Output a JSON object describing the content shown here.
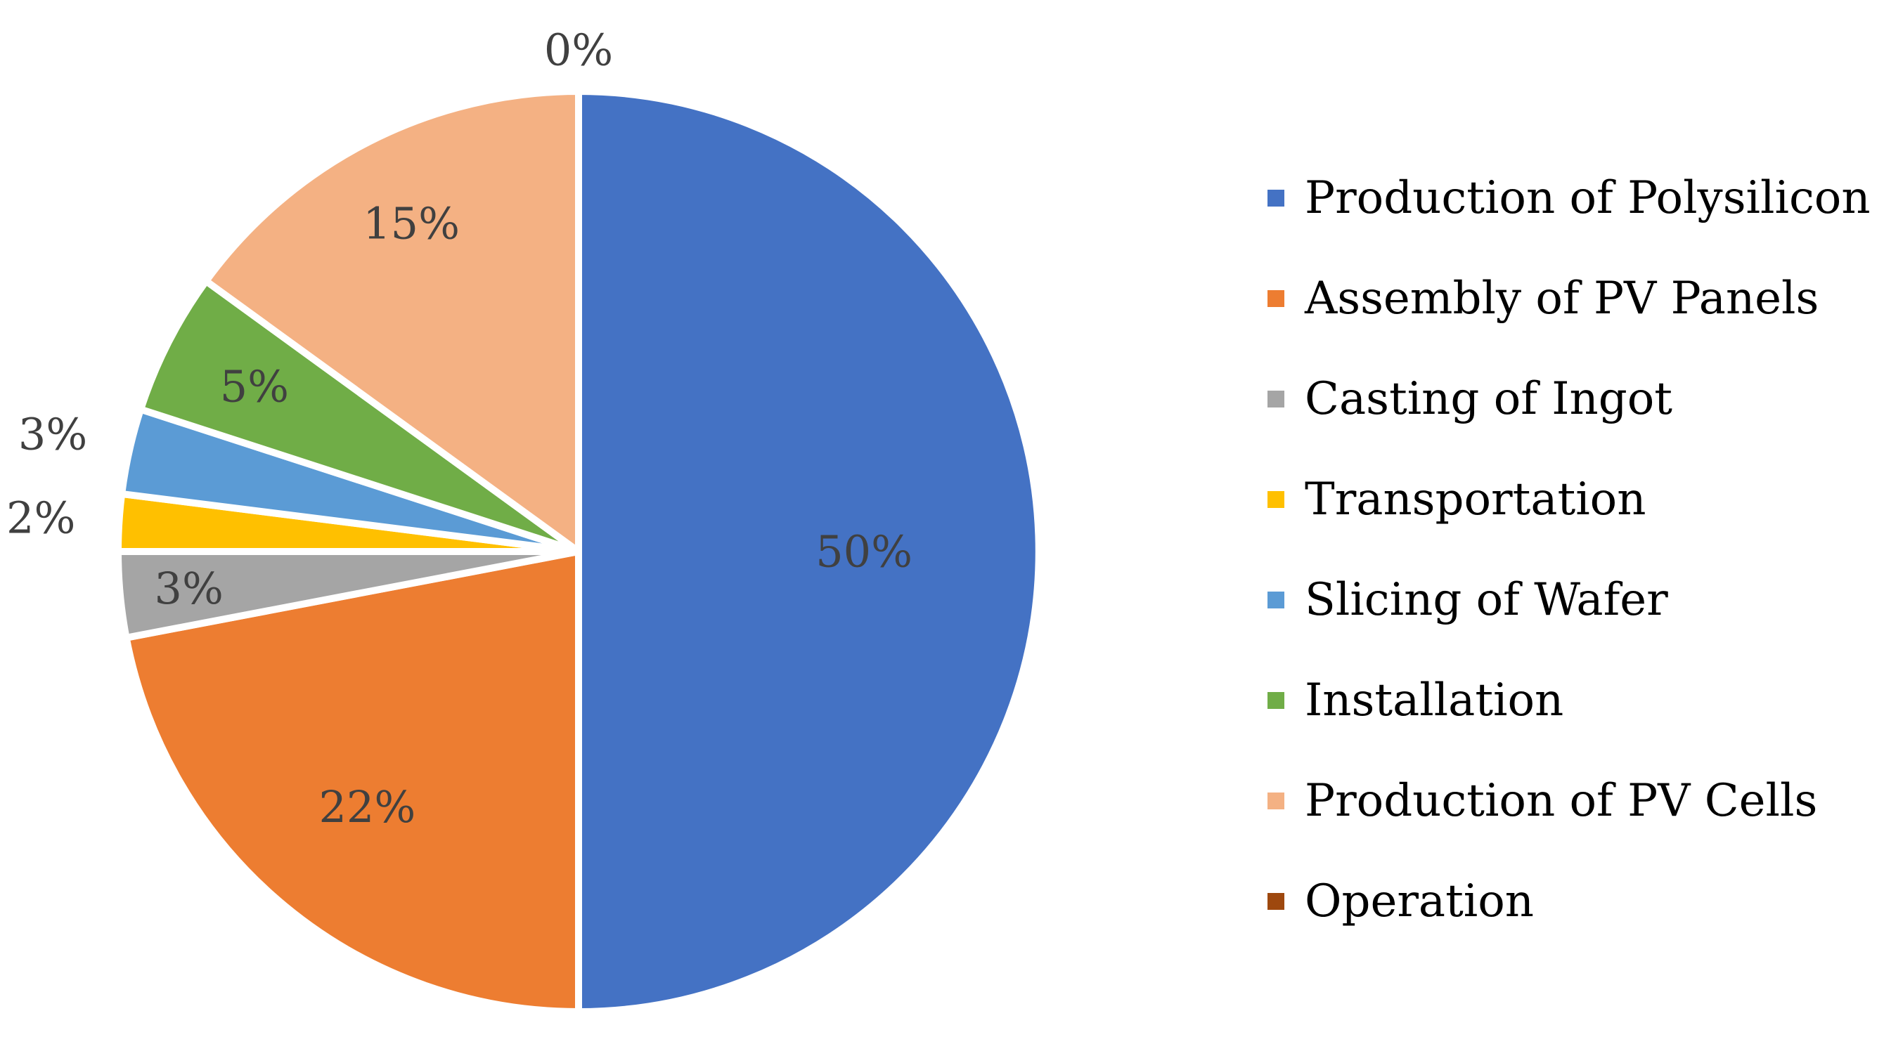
{
  "chart_data": {
    "type": "pie",
    "title": "",
    "unit": "%",
    "legend_position": "right",
    "slices": [
      {
        "label": "Production of Polysilicon",
        "value": 50,
        "value_label": "50%",
        "color": "#4472C4"
      },
      {
        "label": "Assembly of PV Panels",
        "value": 22,
        "value_label": "22%",
        "color": "#ED7D31"
      },
      {
        "label": "Casting of Ingot",
        "value": 3,
        "value_label": "3%",
        "color": "#A5A5A5"
      },
      {
        "label": "Transportation",
        "value": 2,
        "value_label": "2%",
        "color": "#FFC000"
      },
      {
        "label": "Slicing of Wafer",
        "value": 3,
        "value_label": "3%",
        "color": "#5B9BD5"
      },
      {
        "label": "Installation",
        "value": 5,
        "value_label": "5%",
        "color": "#70AD47"
      },
      {
        "label": "Production of PV Cells",
        "value": 15,
        "value_label": "15%",
        "color": "#F4B183"
      },
      {
        "label": "Operation",
        "value": 0,
        "value_label": "0%",
        "color": "#9E480E"
      }
    ]
  }
}
